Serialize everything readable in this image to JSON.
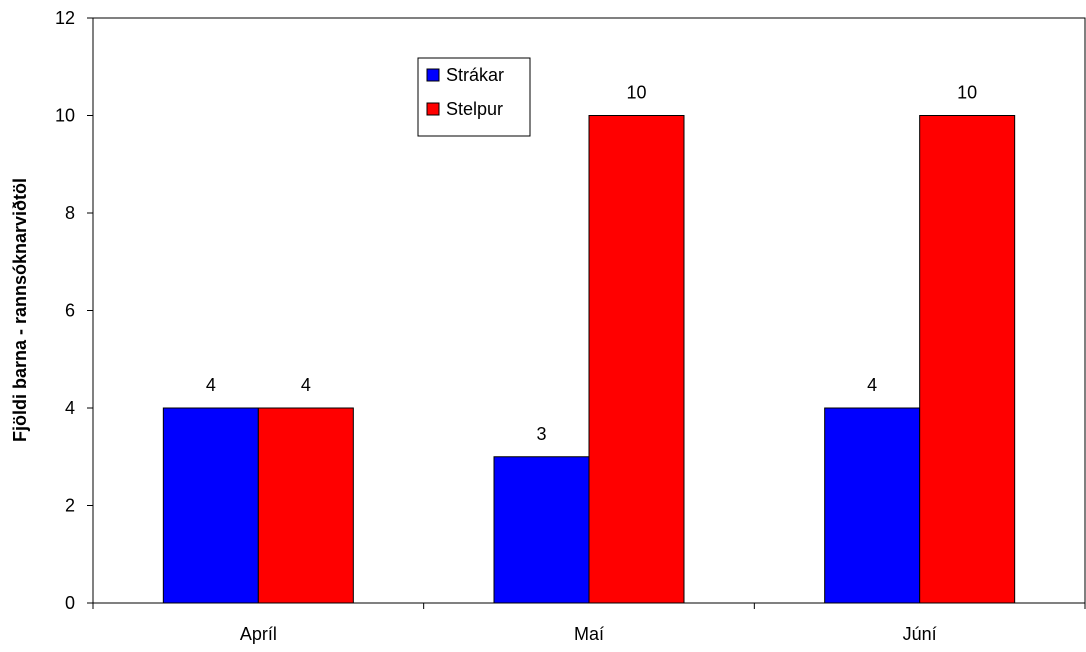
{
  "chart_data": {
    "type": "bar",
    "title": "",
    "xlabel": "",
    "ylabel": "Fjöldi barna - rannsóknarviðtöl",
    "categories": [
      "Apríl",
      "Maí",
      "Júní"
    ],
    "series": [
      {
        "name": "Strákar",
        "values": [
          4,
          3,
          4
        ],
        "color": "#0000ff"
      },
      {
        "name": "Stelpur",
        "values": [
          4,
          10,
          10
        ],
        "color": "#ff0000"
      }
    ],
    "ylim": [
      0,
      12
    ],
    "yticks": [
      0,
      2,
      4,
      6,
      8,
      10,
      12
    ],
    "grid": false,
    "legend_position": "top-center",
    "data_labels": true
  }
}
